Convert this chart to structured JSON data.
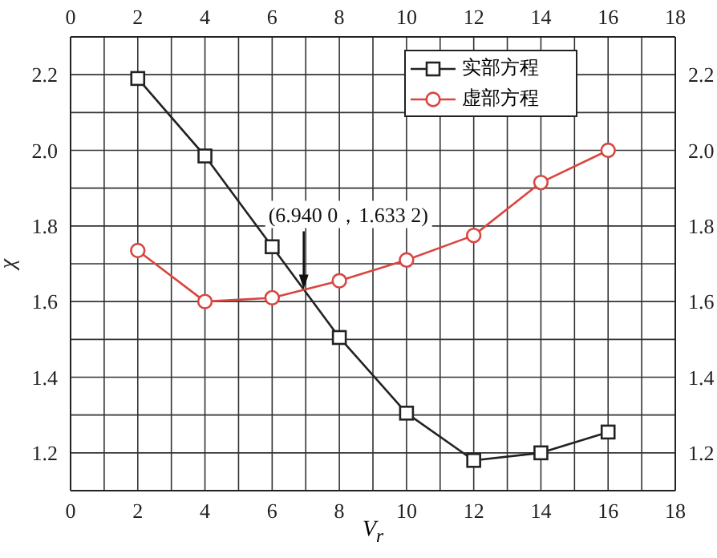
{
  "chart_data": {
    "type": "line",
    "xlabel": "V$_{r}$",
    "ylabel": "χ",
    "x": [
      2,
      4,
      6,
      8,
      10,
      12,
      14,
      16
    ],
    "series": [
      {
        "name": "实部方程",
        "color": "#222222",
        "marker": "square",
        "values": [
          2.19,
          1.985,
          1.745,
          1.505,
          1.305,
          1.18,
          1.2,
          1.255
        ]
      },
      {
        "name": "虚部方程",
        "color": "#d9453f",
        "marker": "circle",
        "values": [
          1.735,
          1.6,
          1.61,
          1.655,
          1.71,
          1.775,
          1.915,
          2.0
        ]
      }
    ],
    "xlim": [
      0,
      18
    ],
    "x2lim": [
      0,
      18
    ],
    "xticks": [
      0,
      {
        "value": 1,
        "label": null
      },
      2,
      {
        "value": 3,
        "label": null
      },
      4,
      {
        "value": 5,
        "label": null
      },
      6,
      {
        "value": 7,
        "label": null
      },
      8,
      {
        "value": 9,
        "label": null
      },
      10,
      {
        "value": 11,
        "label": null
      },
      12,
      {
        "value": 13,
        "label": null
      },
      14,
      {
        "value": 15,
        "label": null
      },
      16,
      {
        "value": 17,
        "label": null
      },
      18
    ],
    "x2ticks": [
      0,
      {
        "value": 1,
        "label": null
      },
      2,
      {
        "value": 3,
        "label": null
      },
      4,
      {
        "value": 5,
        "label": null
      },
      6,
      {
        "value": 7,
        "label": null
      },
      8,
      {
        "value": 9,
        "label": null
      },
      10,
      {
        "value": 11,
        "label": null
      },
      12,
      {
        "value": 13,
        "label": null
      },
      14,
      {
        "value": 15,
        "label": null
      },
      16,
      {
        "value": 17,
        "label": null
      },
      18
    ],
    "ylim": [
      1.1,
      2.3
    ],
    "y2lim": [
      1.1,
      2.3
    ],
    "yticks": [
      {
        "value": 1.2,
        "label": "1.2"
      },
      {
        "value": 1.3,
        "label": null
      },
      {
        "value": 1.4,
        "label": "1.4"
      },
      {
        "value": 1.5,
        "label": null
      },
      {
        "value": 1.6,
        "label": "1.6"
      },
      {
        "value": 1.7,
        "label": null
      },
      {
        "value": 1.8,
        "label": "1.8"
      },
      {
        "value": 1.9,
        "label": null
      },
      {
        "value": 2.0,
        "label": "2.0"
      },
      {
        "value": 2.1,
        "label": null
      },
      {
        "value": 2.2,
        "label": "2.2"
      }
    ],
    "y2ticks": [
      {
        "value": 1.2,
        "label": "1.2"
      },
      {
        "value": 1.3,
        "label": null
      },
      {
        "value": 1.4,
        "label": "1.4"
      },
      {
        "value": 1.5,
        "label": null
      },
      {
        "value": 1.6,
        "label": "1.6"
      },
      {
        "value": 1.7,
        "label": null
      },
      {
        "value": 1.8,
        "label": "1.8"
      },
      {
        "value": 1.9,
        "label": null
      },
      {
        "value": 2.0,
        "label": "2.0"
      },
      {
        "value": 2.1,
        "label": null
      },
      {
        "value": 2.2,
        "label": "2.2"
      }
    ],
    "annotations": [
      {
        "text": "(6.940 0，1.633 2)",
        "x": 6.94,
        "y": 1.6332
      }
    ],
    "grid": true,
    "legend": "top right",
    "line_style": "solid"
  }
}
